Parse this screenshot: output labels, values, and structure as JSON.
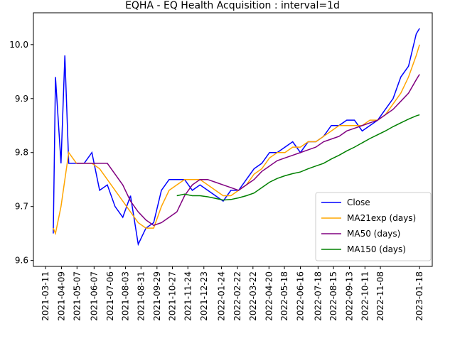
{
  "chart_data": {
    "type": "line",
    "title": "EQHA - EQ Health Acquisition : interval=1d",
    "x": [
      "2021-03-25",
      "2021-03-29",
      "2021-04-08",
      "2021-04-15",
      "2021-04-22",
      "2021-05-06",
      "2021-05-20",
      "2021-06-03",
      "2021-06-17",
      "2021-07-01",
      "2021-07-15",
      "2021-07-29",
      "2021-08-12",
      "2021-08-26",
      "2021-09-09",
      "2021-09-23",
      "2021-10-07",
      "2021-10-21",
      "2021-11-04",
      "2021-11-18",
      "2021-12-02",
      "2021-12-16",
      "2021-12-30",
      "2022-01-13",
      "2022-01-27",
      "2022-02-10",
      "2022-02-24",
      "2022-03-10",
      "2022-03-24",
      "2022-04-07",
      "2022-04-21",
      "2022-05-05",
      "2022-05-19",
      "2022-06-02",
      "2022-06-16",
      "2022-06-30",
      "2022-07-14",
      "2022-07-28",
      "2022-08-11",
      "2022-08-25",
      "2022-09-08",
      "2022-09-22",
      "2022-10-06",
      "2022-10-20",
      "2022-11-03",
      "2022-11-17",
      "2022-12-01",
      "2022-12-15",
      "2022-12-29",
      "2023-01-12",
      "2023-01-18"
    ],
    "series": [
      {
        "name": "Close",
        "color": "#0000ff",
        "values": [
          9.65,
          9.94,
          9.78,
          9.98,
          9.78,
          9.78,
          9.78,
          9.8,
          9.73,
          9.74,
          9.7,
          9.68,
          9.72,
          9.63,
          9.66,
          9.67,
          9.73,
          9.75,
          9.75,
          9.75,
          9.73,
          9.74,
          9.73,
          9.72,
          9.71,
          9.73,
          9.73,
          9.75,
          9.77,
          9.78,
          9.8,
          9.8,
          9.81,
          9.82,
          9.8,
          9.82,
          9.82,
          9.83,
          9.85,
          9.85,
          9.86,
          9.86,
          9.84,
          9.85,
          9.86,
          9.88,
          9.9,
          9.94,
          9.96,
          10.02,
          10.03
        ]
      },
      {
        "name": "MA21exp (days)",
        "color": "#ffa500",
        "values": [
          9.66,
          9.65,
          9.7,
          9.75,
          9.8,
          9.78,
          9.78,
          9.78,
          9.77,
          9.75,
          9.73,
          9.71,
          9.69,
          9.67,
          9.66,
          9.66,
          9.7,
          9.73,
          9.74,
          9.75,
          9.75,
          9.75,
          9.74,
          9.73,
          9.72,
          9.72,
          9.73,
          9.74,
          9.76,
          9.77,
          9.79,
          9.8,
          9.8,
          9.81,
          9.81,
          9.82,
          9.82,
          9.83,
          9.84,
          9.85,
          9.85,
          9.85,
          9.85,
          9.86,
          9.86,
          9.87,
          9.89,
          9.91,
          9.94,
          9.98,
          10.0
        ]
      },
      {
        "name": "MA50 (days)",
        "color": "#800080",
        "values": [
          null,
          null,
          null,
          null,
          null,
          9.78,
          9.78,
          9.78,
          9.78,
          9.78,
          9.76,
          9.74,
          9.71,
          9.69,
          9.675,
          9.665,
          9.67,
          9.68,
          9.69,
          9.72,
          9.74,
          9.75,
          9.75,
          9.745,
          9.74,
          9.735,
          9.73,
          9.74,
          9.75,
          9.765,
          9.775,
          9.785,
          9.79,
          9.795,
          9.8,
          9.805,
          9.81,
          9.82,
          9.825,
          9.83,
          9.84,
          9.845,
          9.85,
          9.855,
          9.86,
          9.87,
          9.88,
          9.895,
          9.91,
          9.935,
          9.945
        ]
      },
      {
        "name": "MA150 (days)",
        "color": "#008000",
        "values": [
          null,
          null,
          null,
          null,
          null,
          null,
          null,
          null,
          null,
          null,
          null,
          null,
          null,
          null,
          null,
          null,
          null,
          null,
          9.72,
          9.723,
          9.72,
          9.72,
          9.718,
          9.715,
          9.712,
          9.713,
          9.716,
          9.72,
          9.725,
          9.735,
          9.745,
          9.752,
          9.757,
          9.761,
          9.764,
          9.77,
          9.775,
          9.78,
          9.788,
          9.795,
          9.803,
          9.81,
          9.818,
          9.826,
          9.833,
          9.84,
          9.848,
          9.855,
          9.862,
          9.868,
          9.87
        ]
      }
    ],
    "xlim": [
      "2021-02-17",
      "2023-02-10"
    ],
    "xticks": [
      "2021-03-11",
      "2021-04-09",
      "2021-05-07",
      "2021-06-07",
      "2021-07-06",
      "2021-08-03",
      "2021-08-31",
      "2021-09-29",
      "2021-10-27",
      "2021-11-24",
      "2021-12-23",
      "2022-01-24",
      "2022-02-22",
      "2022-03-22",
      "2022-04-20",
      "2022-05-18",
      "2022-06-16",
      "2022-07-18",
      "2022-08-15",
      "2022-09-13",
      "2022-10-11",
      "2022-11-08",
      "2023-01-18"
    ],
    "ylim": [
      9.589,
      10.059
    ],
    "yticks": [
      9.6,
      9.7,
      9.8,
      9.9,
      {
        "value": 10.0,
        "label": "10.0"
      }
    ],
    "legend": "lower right"
  }
}
